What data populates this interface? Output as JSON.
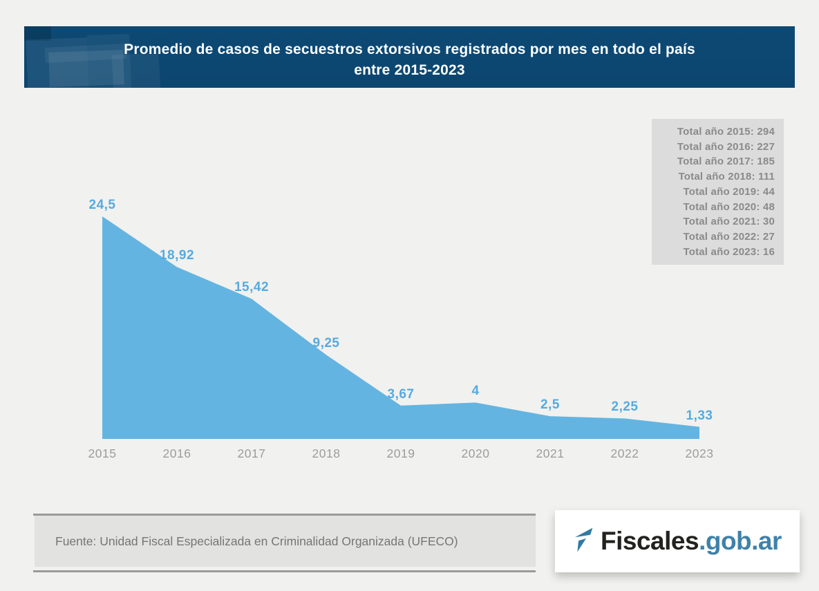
{
  "header": {
    "title_line1": "Promedio de casos de secuestros extorsivos registrados por mes en todo el país",
    "title_line2": "entre 2015-2023"
  },
  "totals_box": {
    "lines": [
      "Total año 2015: 294",
      "Total año 2016: 227",
      "Total año 2017: 185",
      "Total año 2018: 111",
      "Total año 2019: 44",
      "Total año 2020: 48",
      "Total año 2021: 30",
      "Total año 2022: 27",
      "Total año 2023: 16"
    ]
  },
  "chart_data": {
    "type": "area",
    "title": "Promedio de casos de secuestros extorsivos registrados por mes en todo el país entre 2015-2023",
    "categories": [
      "2015",
      "2016",
      "2017",
      "2018",
      "2019",
      "2020",
      "2021",
      "2022",
      "2023"
    ],
    "values": [
      24.5,
      18.92,
      15.42,
      9.25,
      3.67,
      4,
      2.5,
      2.25,
      1.33
    ],
    "point_labels": [
      "24,5",
      "18,92",
      "15,42",
      "9,25",
      "3,67",
      "4",
      "2,5",
      "2,25",
      "1,33"
    ],
    "xlabel": "",
    "ylabel": "",
    "ylim": [
      0,
      24.5
    ],
    "grid": false,
    "legend": "none",
    "fill_color": "#64b4e2",
    "point_label_color": "#54abdf",
    "axis_label_color": "#9c9c9c"
  },
  "source": {
    "text": "Fuente: Unidad Fiscal Especializada en Criminalidad Organizada (UFECO)"
  },
  "logo": {
    "name_dark": "Fiscales",
    "name_blue": ".gob.ar",
    "dark_color": "#22221f",
    "blue_color": "#3f81a9",
    "icon_color": "#2f7ba4"
  },
  "colors": {
    "banner_bg": "#0d4973",
    "page_bg": "#f1f1ef",
    "totals_bg": "#dcdcdc",
    "totals_text": "#8a8a8a",
    "source_bg": "#e2e2e1",
    "source_text": "#757575"
  }
}
